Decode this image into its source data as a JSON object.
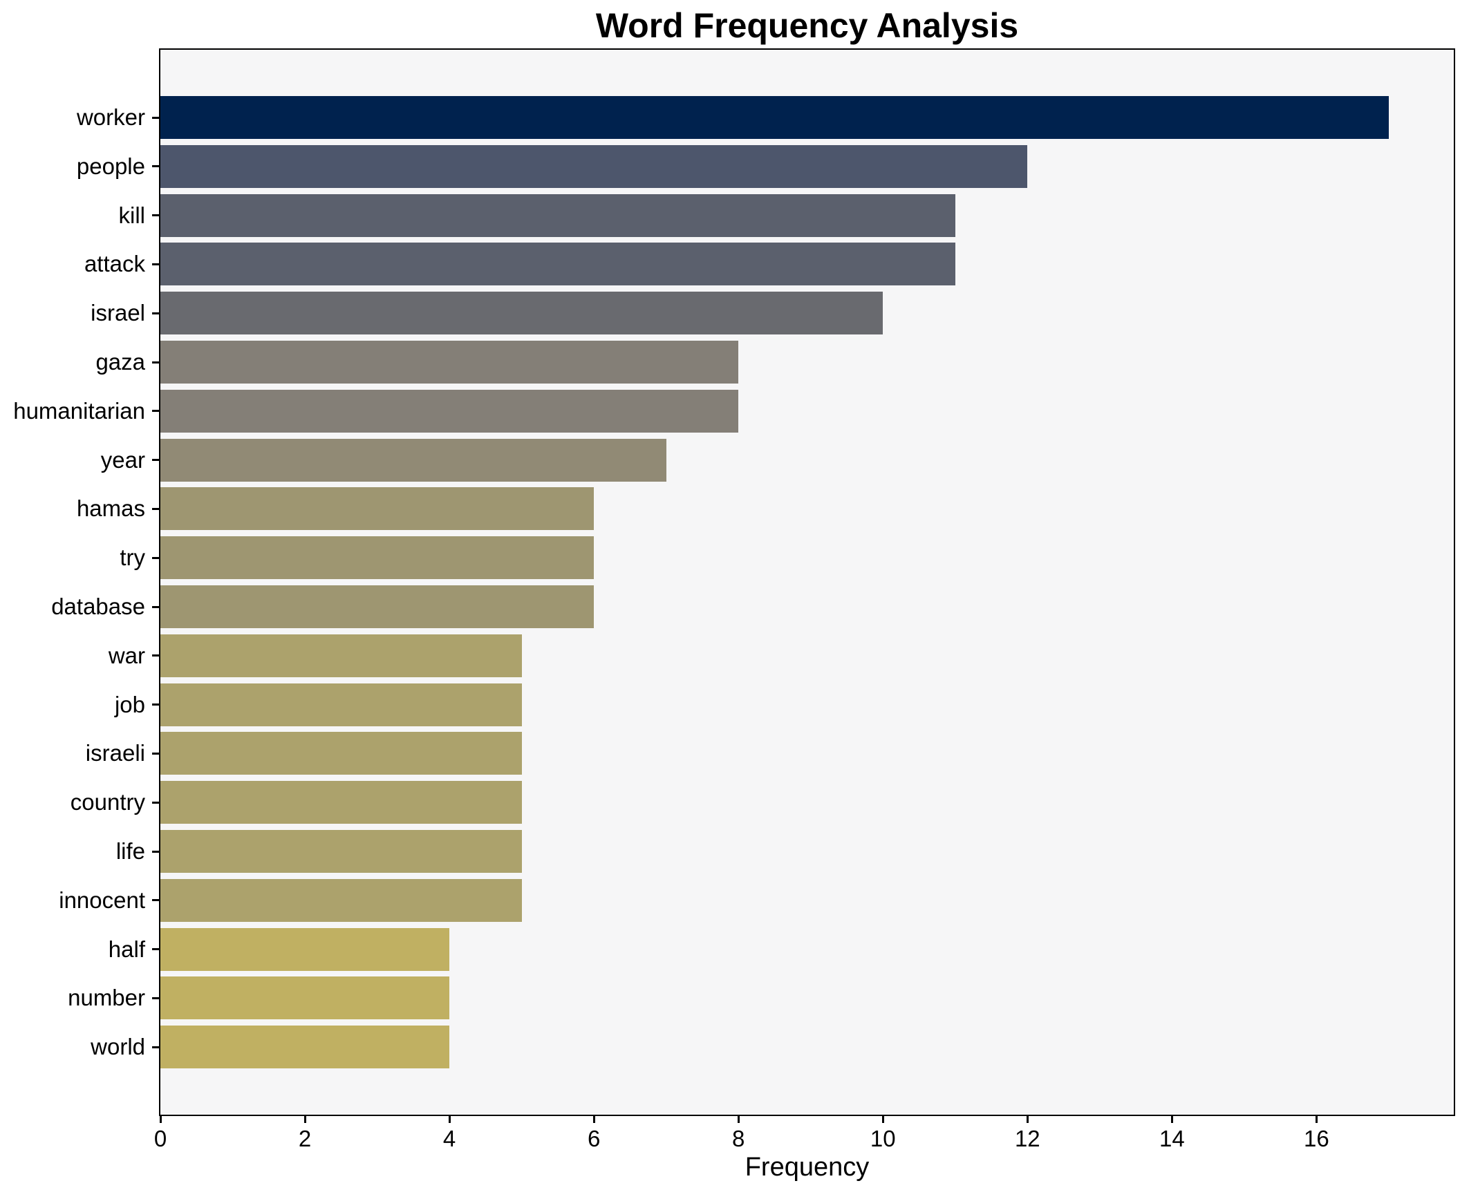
{
  "title": "Word Frequency Analysis",
  "chart_data": {
    "type": "bar",
    "orientation": "horizontal",
    "title": "Word Frequency Analysis",
    "xlabel": "Frequency",
    "ylabel": "",
    "categories": [
      "worker",
      "people",
      "kill",
      "attack",
      "israel",
      "gaza",
      "humanitarian",
      "year",
      "hamas",
      "try",
      "database",
      "war",
      "job",
      "israeli",
      "country",
      "life",
      "innocent",
      "half",
      "number",
      "world"
    ],
    "values": [
      17,
      12,
      11,
      11,
      10,
      8,
      8,
      7,
      6,
      6,
      6,
      5,
      5,
      5,
      5,
      5,
      5,
      4,
      4,
      4
    ],
    "bar_colors": [
      "#00224e",
      "#4d566c",
      "#5b606d",
      "#5b606d",
      "#696a6f",
      "#847f77",
      "#847f77",
      "#918a75",
      "#9e9671",
      "#9e9671",
      "#9e9671",
      "#aca26c",
      "#aca26c",
      "#aca26c",
      "#aca26c",
      "#aca26c",
      "#aca26c",
      "#c0b062",
      "#c0b062",
      "#c0b062"
    ],
    "xlim": [
      0,
      17.9
    ],
    "xticks": [
      0,
      2,
      4,
      6,
      8,
      10,
      12,
      14,
      16
    ],
    "grid": false,
    "legend": "none",
    "plot_background": "#f6f6f7",
    "figure_background": "#ffffff",
    "spine_color": "#000000",
    "text_color": "#000000",
    "colormap": "cividis (reversed, mapped to frequency)"
  }
}
